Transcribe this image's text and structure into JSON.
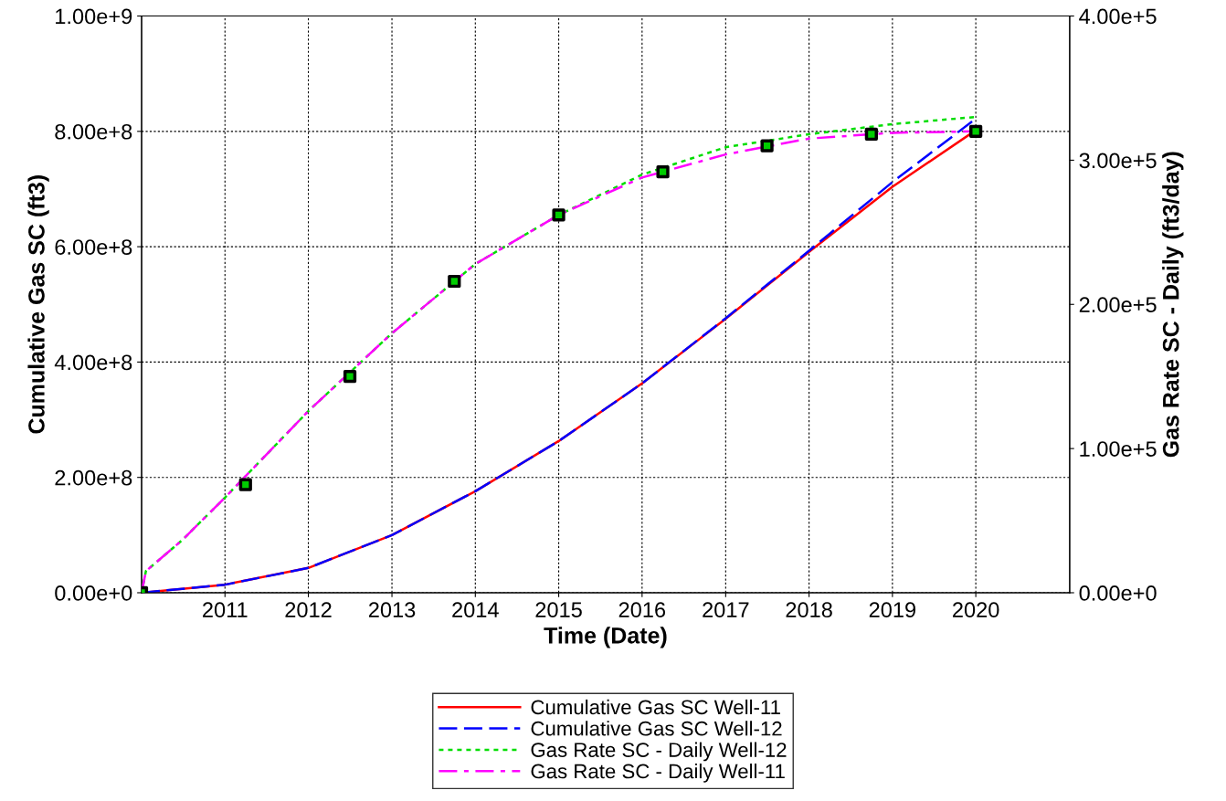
{
  "chart_data": {
    "type": "line",
    "xlabel": "Time (Date)",
    "ylabel": "Cumulative Gas SC (ft3)",
    "y2label": "Gas Rate SC - Daily (ft3/day)",
    "xlim": [
      "2010-01-01",
      "2021-02-15"
    ],
    "xticks": [
      {
        "value": "2011-01-01",
        "label": "2011"
      },
      {
        "value": "2012-01-01",
        "label": "2012"
      },
      {
        "value": "2013-01-01",
        "label": "2013"
      },
      {
        "value": "2014-01-01",
        "label": "2014"
      },
      {
        "value": "2015-01-01",
        "label": "2015"
      },
      {
        "value": "2016-01-01",
        "label": "2016"
      },
      {
        "value": "2017-01-01",
        "label": "2017"
      },
      {
        "value": "2018-01-01",
        "label": "2018"
      },
      {
        "value": "2019-01-01",
        "label": "2019"
      },
      {
        "value": "2020-01-01",
        "label": "2020"
      }
    ],
    "ylim": [
      0,
      1000000000
    ],
    "yticks": [
      {
        "value": 0,
        "label": "0.00e+0"
      },
      {
        "value": 200000000,
        "label": "2.00e+8"
      },
      {
        "value": 400000000,
        "label": "4.00e+8"
      },
      {
        "value": 600000000,
        "label": "6.00e+8"
      },
      {
        "value": 800000000,
        "label": "8.00e+8"
      },
      {
        "value": 1000000000,
        "label": "1.00e+9"
      }
    ],
    "y2lim": [
      0,
      400000
    ],
    "y2ticks": [
      {
        "value": 0,
        "label": "0.00e+0"
      },
      {
        "value": 100000,
        "label": "1.00e+5"
      },
      {
        "value": 200000,
        "label": "2.00e+5"
      },
      {
        "value": 300000,
        "label": "3.00e+5"
      },
      {
        "value": 400000,
        "label": "4.00e+5"
      }
    ],
    "grid": true,
    "legend": "bottom",
    "marker": "none",
    "x": [
      "2010-01-01",
      "2011-01-01",
      "2012-01-01",
      "2013-01-01",
      "2014-01-01",
      "2015-01-01",
      "2016-01-01",
      "2017-01-01",
      "2018-01-01",
      "2019-01-01",
      "2020-01-01"
    ],
    "series": [
      {
        "name": "Cumulative Gas SC Well-11",
        "color": "#ff0000",
        "line_style": "solid",
        "values": [
          0,
          14000000,
          43000000,
          100000000,
          176000000,
          263000000,
          363000000,
          475000000,
          591000000,
          704000000,
          802000000
        ]
      },
      {
        "name": "Cumulative Gas SC Well-12",
        "color": "#0000ff",
        "line_style": "dashed",
        "values": [
          0,
          14000000,
          43000000,
          100000000,
          176000000,
          263000000,
          363000000,
          476000000,
          593000000,
          712000000,
          822000000
        ]
      },
      {
        "name": "Gas Rate SC - Daily Well-12",
        "color": "#00dd00",
        "line_style": "dotted",
        "axis": "y2",
        "x": [
          "2010-01-01",
          "2010-01-20",
          "2010-07-01",
          "2011-01-01",
          "2012-01-01",
          "2013-01-01",
          "2014-01-01",
          "2015-01-01",
          "2016-01-01",
          "2017-01-01",
          "2018-01-01",
          "2019-01-01",
          "2020-01-01"
        ],
        "values": [
          0,
          15000,
          37000,
          66000,
          126000,
          180000,
          228000,
          262000,
          290000,
          309000,
          318000,
          325000,
          330000
        ]
      },
      {
        "name": "Gas Rate SC - Daily Well-11",
        "color": "#ff00ff",
        "line_style": "dashdot",
        "axis": "y2",
        "x": [
          "2010-01-01",
          "2010-01-20",
          "2010-07-01",
          "2011-01-01",
          "2012-01-01",
          "2013-01-01",
          "2014-01-01",
          "2015-01-01",
          "2016-01-01",
          "2017-01-01",
          "2018-01-01",
          "2019-01-01",
          "2020-01-01"
        ],
        "values": [
          0,
          15000,
          37000,
          66000,
          126000,
          180000,
          228000,
          262000,
          288000,
          304000,
          315000,
          319000,
          320000
        ]
      },
      {
        "type": "scatter",
        "color": "#000000",
        "marker": "square",
        "axis": "y2",
        "x": [
          "2010-01-01",
          "2011-04-01",
          "2012-07-01",
          "2013-10-01",
          "2015-01-01",
          "2016-04-01",
          "2017-07-01",
          "2018-10-01",
          "2020-01-01"
        ],
        "values": [
          0,
          75000,
          150000,
          216000,
          262000,
          292000,
          310000,
          318000,
          320000
        ]
      }
    ]
  }
}
